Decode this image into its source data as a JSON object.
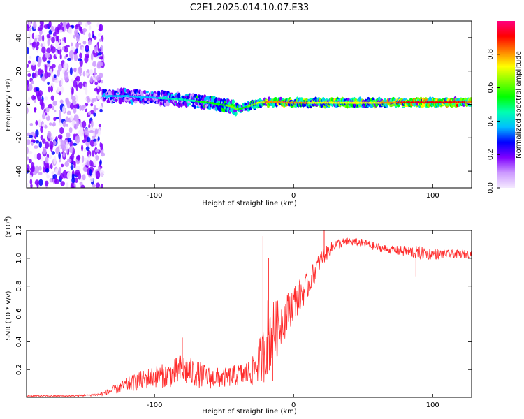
{
  "figure_title": "C2E1.2025.014.10.07.E33",
  "chart_data": [
    {
      "type": "heatmap",
      "name": "spectrogram",
      "xlabel": "Height of straight line (km)",
      "ylabel": "Frequency (Hz)",
      "xlim": [
        -192,
        128
      ],
      "ylim": [
        -50,
        50
      ],
      "xticks": [
        -100,
        0,
        100
      ],
      "xtick_labels": [
        "-100",
        "0",
        "100"
      ],
      "yticks": [
        -40,
        -20,
        0,
        20,
        40
      ],
      "ytick_labels": [
        "-40",
        "-20",
        "0",
        "20",
        "40"
      ],
      "colorbar": {
        "label": "Normalized spectral amplitude",
        "range": [
          0,
          1
        ],
        "ticks": [
          0.0,
          0.2,
          0.4,
          0.6,
          0.8
        ],
        "tick_labels": [
          "0.0",
          "0.2",
          "0.4",
          "0.6",
          "0.8"
        ],
        "colors": [
          "#f4e9ff",
          "#cc99ff",
          "#8000ff",
          "#0000ff",
          "#00bfff",
          "#00ffb0",
          "#00ff00",
          "#80ff00",
          "#ffff00",
          "#ff8000",
          "#ff0000",
          "#ff0080"
        ]
      },
      "noise_region_x": [
        -192,
        -137
      ],
      "ridge_x": [
        -137,
        -120,
        -100,
        -80,
        -60,
        -45,
        -40,
        -35,
        -25,
        -15,
        0,
        20,
        40,
        60,
        80,
        100,
        128
      ],
      "ridge_freq": [
        5,
        5,
        4,
        3,
        1,
        -1,
        -3,
        -2,
        1,
        1.5,
        1,
        1,
        1,
        1,
        1.2,
        1.2,
        1.3
      ],
      "ridge_amplitude": [
        0.35,
        0.4,
        0.4,
        0.45,
        0.55,
        0.6,
        0.6,
        0.55,
        0.7,
        0.85,
        0.8,
        0.75,
        0.75,
        0.75,
        0.9,
        0.95,
        0.85
      ]
    },
    {
      "type": "line",
      "name": "snr",
      "xlabel": "Height of straight line (km)",
      "ylabel": "SNR (10 * v/v)",
      "y_multiplier_label": "(x10",
      "y_multiplier_exponent": "4",
      "xlim": [
        -192,
        128
      ],
      "ylim": [
        0,
        1.2
      ],
      "xticks": [
        -100,
        0,
        100
      ],
      "xtick_labels": [
        "-100",
        "0",
        "100"
      ],
      "yticks": [
        0.2,
        0.4,
        0.6,
        0.8,
        1.0,
        1.2
      ],
      "ytick_labels": [
        "0.2",
        "0.4",
        "0.6",
        "0.8",
        "1.0",
        "1.2"
      ],
      "series_color": "#ff2a2a",
      "trend_x": [
        -192,
        -160,
        -140,
        -130,
        -120,
        -110,
        -100,
        -90,
        -80,
        -70,
        -60,
        -50,
        -40,
        -30,
        -26,
        -22,
        -20,
        -18,
        -15,
        -10,
        -5,
        0,
        5,
        10,
        15,
        20,
        25,
        30,
        40,
        50,
        60,
        70,
        80,
        90,
        100,
        110,
        128
      ],
      "trend_y": [
        0.01,
        0.01,
        0.02,
        0.05,
        0.09,
        0.12,
        0.15,
        0.16,
        0.2,
        0.17,
        0.14,
        0.14,
        0.16,
        0.18,
        0.24,
        0.3,
        0.42,
        0.45,
        0.45,
        0.52,
        0.6,
        0.68,
        0.74,
        0.8,
        0.9,
        1.0,
        1.05,
        1.1,
        1.12,
        1.11,
        1.08,
        1.06,
        1.05,
        1.04,
        1.03,
        1.03,
        1.03
      ],
      "noise_amplitude": [
        0.005,
        0.005,
        0.01,
        0.03,
        0.05,
        0.07,
        0.08,
        0.09,
        0.12,
        0.1,
        0.08,
        0.07,
        0.08,
        0.1,
        0.14,
        0.2,
        0.3,
        0.28,
        0.25,
        0.18,
        0.15,
        0.13,
        0.12,
        0.1,
        0.08,
        0.06,
        0.05,
        0.04,
        0.03,
        0.03,
        0.03,
        0.03,
        0.04,
        0.05,
        0.04,
        0.03,
        0.03
      ],
      "spikes": [
        {
          "x": -80,
          "y": 0.43
        },
        {
          "x": -22,
          "y": 1.16
        },
        {
          "x": -18,
          "y": 1.0
        },
        {
          "x": -15,
          "y": 0.12
        },
        {
          "x": 22,
          "y": 1.2
        },
        {
          "x": 88,
          "y": 0.87
        }
      ]
    }
  ]
}
